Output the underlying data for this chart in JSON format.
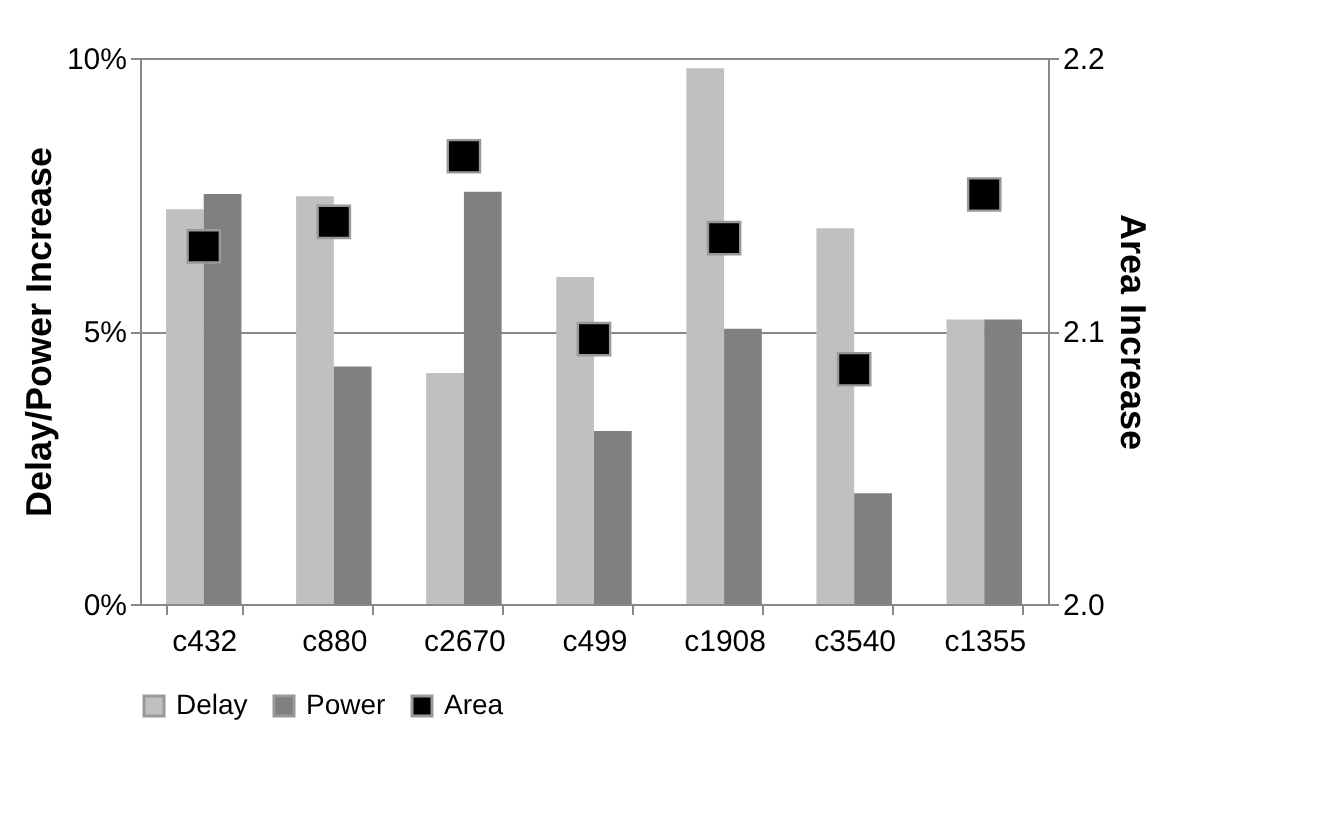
{
  "chart_data": {
    "type": "bar",
    "categories": [
      "c432",
      "c880",
      "c2670",
      "c499",
      "c1908",
      "c3540",
      "c1355"
    ],
    "series": [
      {
        "name": "Delay",
        "color": "#c0c0c0",
        "values": [
          7.23,
          7.47,
          4.23,
          5.99,
          9.81,
          6.88,
          5.21
        ]
      },
      {
        "name": "Power",
        "color": "#808080",
        "values": [
          7.51,
          4.35,
          7.55,
          3.17,
          5.04,
          2.03,
          5.21
        ]
      },
      {
        "name": "Area",
        "color": "#000000",
        "type": "scatter",
        "axis": "y2",
        "marker": "square",
        "values": [
          2.131,
          2.14,
          2.164,
          2.097,
          2.134,
          2.086,
          2.15
        ]
      }
    ],
    "ylabel": "Delay/Power Increase",
    "y2label": "Area Increase",
    "ylim": [
      0,
      10
    ],
    "yticks": [
      {
        "value": 0,
        "label": "0%"
      },
      {
        "value": 5,
        "label": "5%"
      },
      {
        "value": 10,
        "label": "10%"
      }
    ],
    "y2lim": [
      2.0,
      2.2
    ],
    "y2ticks": [
      {
        "value": 2.0,
        "label": "2.0"
      },
      {
        "value": 2.1,
        "label": "2.1"
      },
      {
        "value": 2.2,
        "label": "2.2"
      }
    ],
    "grid": "y",
    "legend": "bottom"
  }
}
